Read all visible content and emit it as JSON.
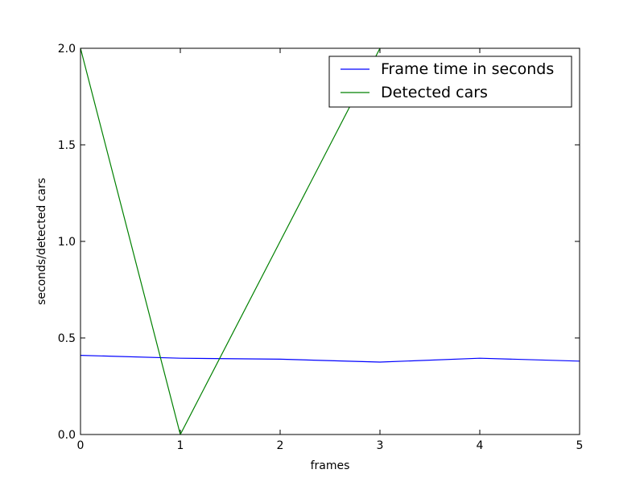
{
  "chart_data": {
    "type": "line",
    "x_label": "frames",
    "y_label": "seconds/detected cars",
    "x": [
      0,
      1,
      2,
      3,
      4,
      5
    ],
    "series": [
      {
        "name": "Frame time in seconds",
        "color": "#0000ff",
        "values": [
          0.41,
          0.395,
          0.39,
          0.375,
          0.395,
          0.38
        ]
      },
      {
        "name": "Detected cars",
        "color": "#008000",
        "values": [
          2,
          0,
          1,
          2,
          null,
          null
        ]
      }
    ],
    "xlim": [
      0,
      5
    ],
    "xticks": [
      0,
      1,
      2,
      3,
      4,
      5
    ],
    "ylim": [
      0,
      2
    ],
    "yticks": [
      {
        "value": 0,
        "label": "0.0"
      },
      0.5,
      {
        "value": 1,
        "label": "1.0"
      },
      1.5,
      {
        "value": 2,
        "label": "2.0"
      }
    ],
    "legend": "upper right"
  }
}
